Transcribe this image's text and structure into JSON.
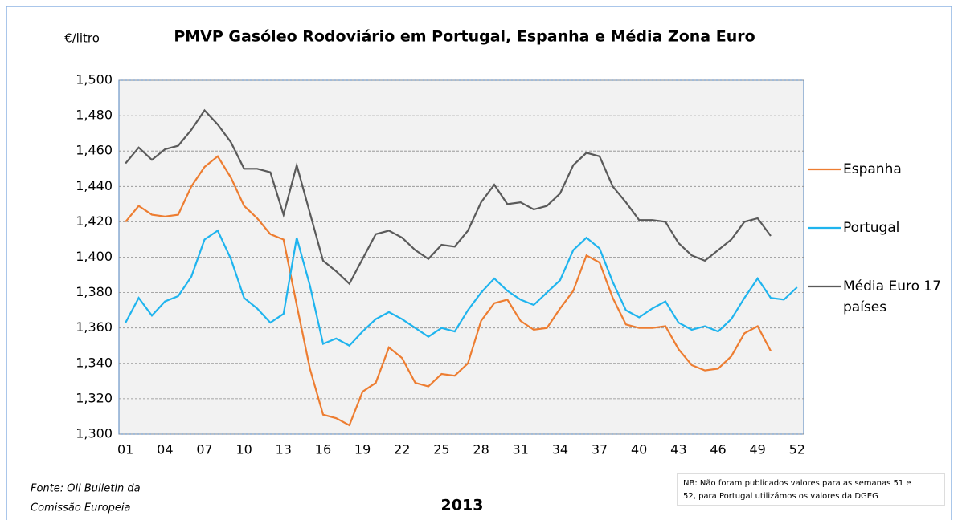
{
  "chart_data": {
    "type": "line",
    "title": "PMVP Gasóleo Rodoviário em Portugal, Espanha  e Média Zona Euro",
    "ylabel": "€/litro",
    "xlabel": "2013",
    "source": [
      "Fonte: Oil Bulletin da",
      "Comissão Europeia"
    ],
    "note": [
      "NB: Não foram publicados valores para as semanas 51 e",
      "52, para Portugal utilizámos os valores da DGEG"
    ],
    "categories": [
      "01",
      null,
      null,
      "04",
      null,
      null,
      "07",
      null,
      null,
      "10",
      null,
      null,
      "13",
      null,
      null,
      "16",
      null,
      null,
      "19",
      null,
      null,
      "22",
      null,
      null,
      "25",
      null,
      null,
      "28",
      null,
      null,
      "31",
      null,
      null,
      "34",
      null,
      null,
      "37",
      null,
      null,
      "40",
      null,
      null,
      "43",
      null,
      null,
      "46",
      null,
      null,
      "49",
      null,
      null,
      "52"
    ],
    "series": [
      {
        "name": "Espanha",
        "color": "#ed7d31",
        "values": [
          1.42,
          1.429,
          1.424,
          1.423,
          1.424,
          1.44,
          1.451,
          1.457,
          1.445,
          1.429,
          1.422,
          1.413,
          1.41,
          1.373,
          1.337,
          1.311,
          1.309,
          1.305,
          1.324,
          1.329,
          1.349,
          1.343,
          1.329,
          1.327,
          1.334,
          1.333,
          1.34,
          1.364,
          1.374,
          1.376,
          1.364,
          1.359,
          1.36,
          1.371,
          1.381,
          1.401,
          1.397,
          1.377,
          1.362,
          1.36,
          1.36,
          1.361,
          1.348,
          1.339,
          1.336,
          1.337,
          1.344,
          1.357,
          1.361,
          1.347,
          null,
          null
        ]
      },
      {
        "name": "Portugal",
        "color": "#1fb4ee",
        "values": [
          1.363,
          1.377,
          1.367,
          1.375,
          1.378,
          1.389,
          1.41,
          1.415,
          1.399,
          1.377,
          1.371,
          1.363,
          1.368,
          1.411,
          1.384,
          1.351,
          1.354,
          1.35,
          1.358,
          1.365,
          1.369,
          1.365,
          1.36,
          1.355,
          1.36,
          1.358,
          1.37,
          1.38,
          1.388,
          1.381,
          1.376,
          1.373,
          1.38,
          1.387,
          1.404,
          1.411,
          1.405,
          1.386,
          1.37,
          1.366,
          1.371,
          1.375,
          1.363,
          1.359,
          1.361,
          1.358,
          1.365,
          1.377,
          1.388,
          1.377,
          1.376,
          1.383
        ]
      },
      {
        "name": "Média Euro 17 países",
        "color": "#5a5a5a",
        "values": [
          1.453,
          1.462,
          1.455,
          1.461,
          1.463,
          1.472,
          1.483,
          1.475,
          1.465,
          1.45,
          1.45,
          1.448,
          1.424,
          1.452,
          1.425,
          1.398,
          1.392,
          1.385,
          1.399,
          1.413,
          1.415,
          1.411,
          1.404,
          1.399,
          1.407,
          1.406,
          1.415,
          1.431,
          1.441,
          1.43,
          1.431,
          1.427,
          1.429,
          1.436,
          1.452,
          1.459,
          1.457,
          1.44,
          1.431,
          1.421,
          1.421,
          1.42,
          1.408,
          1.401,
          1.398,
          1.404,
          1.41,
          1.42,
          1.422,
          1.412,
          null,
          null
        ]
      }
    ],
    "ylim": [
      1.3,
      1.5
    ],
    "yticks": [
      {
        "value": 1.3,
        "label": "1,300"
      },
      {
        "value": 1.32,
        "label": "1,320"
      },
      {
        "value": 1.34,
        "label": "1,340"
      },
      {
        "value": 1.36,
        "label": "1,360"
      },
      {
        "value": 1.38,
        "label": "1,380"
      },
      {
        "value": 1.4,
        "label": "1,400"
      },
      {
        "value": 1.42,
        "label": "1,420"
      },
      {
        "value": 1.44,
        "label": "1,440"
      },
      {
        "value": 1.46,
        "label": "1,460"
      },
      {
        "value": 1.48,
        "label": "1,480"
      },
      {
        "value": 1.5,
        "label": "1,500"
      }
    ],
    "grid": true
  }
}
